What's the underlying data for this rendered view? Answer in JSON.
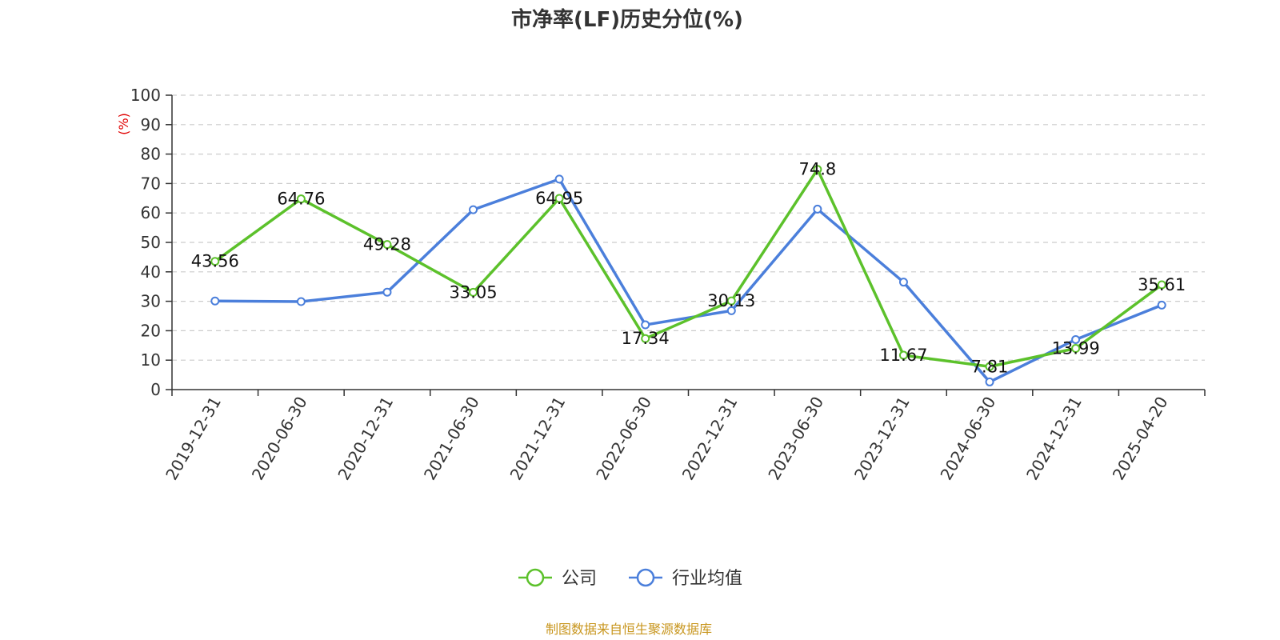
{
  "chart_data": {
    "type": "line",
    "title": "市净率(LF)历史分位(%)",
    "ylabel": "(%)",
    "ylim": [
      0,
      100
    ],
    "yticks": [
      0,
      10,
      20,
      30,
      40,
      50,
      60,
      70,
      80,
      90,
      100
    ],
    "grid": true,
    "legend_position": "bottom",
    "categories": [
      "2019-12-31",
      "2020-06-30",
      "2020-12-31",
      "2021-06-30",
      "2021-12-31",
      "2022-06-30",
      "2022-12-31",
      "2023-06-30",
      "2023-12-31",
      "2024-06-30",
      "2024-12-31",
      "2025-04-20"
    ],
    "series": [
      {
        "name": "公司",
        "color": "#5cc12b",
        "values": [
          43.56,
          64.76,
          49.28,
          33.05,
          64.95,
          17.34,
          30.13,
          74.8,
          11.67,
          7.81,
          13.99,
          35.61
        ],
        "labels": [
          "43.56",
          "64.76",
          "49.28",
          "33.05",
          "64.95",
          "17.34",
          "30.13",
          "74.8",
          "11.67",
          "7.81",
          "13.99",
          "35.61"
        ]
      },
      {
        "name": "行业均值",
        "color": "#4b7fdb",
        "values": [
          30.1,
          29.9,
          33.1,
          61.1,
          71.5,
          22.0,
          26.8,
          61.3,
          36.5,
          2.6,
          17.0,
          28.7
        ]
      }
    ],
    "ylabel_color": "#e00000"
  },
  "footer": {
    "source": "制图数据来自恒生聚源数据库",
    "color": "#c8961e"
  }
}
